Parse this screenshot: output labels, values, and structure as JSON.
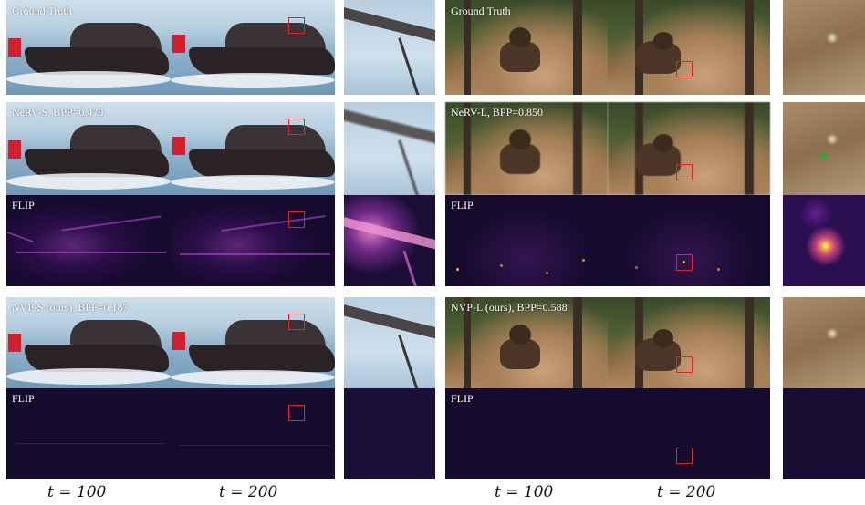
{
  "row_labels": {
    "ground_truth_left": "Ground Truth",
    "ground_truth_right": "Ground Truth",
    "nerv_s": "NeRV-S, BPP=0.479",
    "nerv_l": "NeRV-L, BPP=0.850",
    "flip_1_left": "FLIP",
    "flip_1_right": "FLIP",
    "nvp_s": "NVP-S (ours), BPP=0.187",
    "nvp_l": "NVP-L (ours), BPP=0.588",
    "flip_2_left": "FLIP",
    "flip_2_right": "FLIP"
  },
  "time_labels": [
    "t = 100",
    "t = 200",
    "t = 100",
    "t = 200"
  ],
  "colors": {
    "highlight_box": "#e8202a",
    "flip_background": "#150b2c"
  }
}
